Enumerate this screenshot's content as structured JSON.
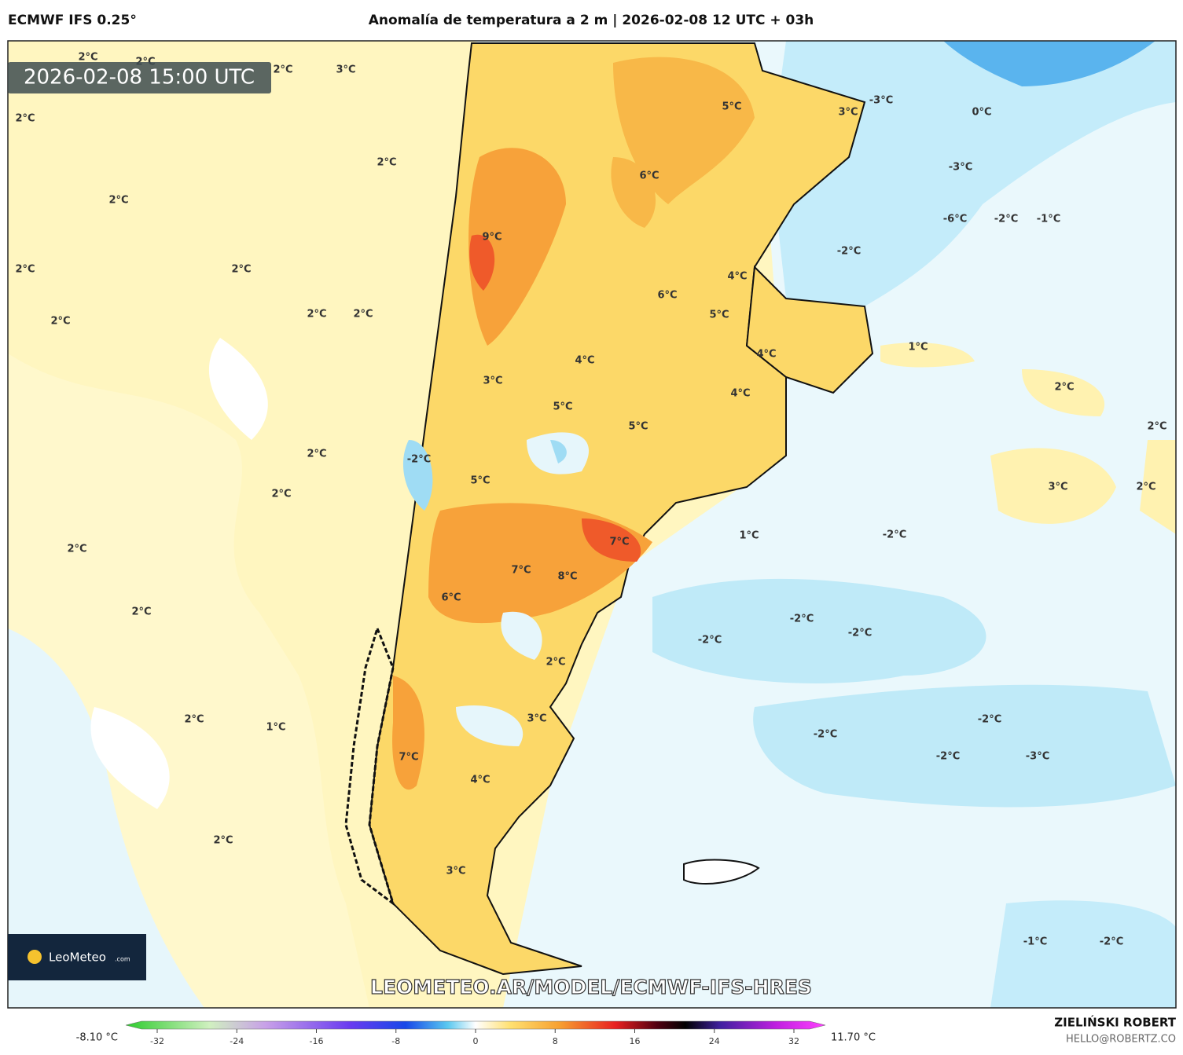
{
  "header": {
    "model": "ECMWF IFS 0.25°",
    "title": "Anomalía de temperatura a 2 m | 2026-02-08 12 UTC + 03h"
  },
  "map": {
    "timestamp": "2026-02-08 15:00 UTC",
    "labels": [
      "2°C",
      "2°C",
      "2°C",
      "3°C",
      "2°C",
      "2°C",
      "2°C",
      "2°C",
      "2°C",
      "2°C",
      "2°C",
      "2°C",
      "9°C",
      "3°C",
      "6°C",
      "5°C",
      "3°C",
      "-3°C",
      "0°C",
      "-3°C",
      "-6°C",
      "-2°C",
      "-1°C",
      "-2°C",
      "4°C",
      "6°C",
      "5°C",
      "4°C",
      "4°C",
      "1°C",
      "5°C",
      "5°C",
      "4°C",
      "2°C",
      "2°C",
      "-2°C",
      "2°C",
      "5°C",
      "2°C",
      "3°C",
      "2°C",
      "2°C",
      "7°C",
      "1°C",
      "-2°C",
      "7°C",
      "8°C",
      "6°C",
      "2°C",
      "-2°C",
      "-2°C",
      "-2°C",
      "2°C",
      "3°C",
      "2°C",
      "1°C",
      "-2°C",
      "-2°C",
      "-2°C",
      "-3°C",
      "7°C",
      "4°C",
      "2°C",
      "3°C",
      "-1°C",
      "-2°C"
    ],
    "watermark": "LEOMETEO.AR/MODEL/ECMWF-IFS-HRES",
    "logo": {
      "name": "LeoMeteo",
      "suffix": ".com"
    }
  },
  "colorbar": {
    "min_label": "-8.10 °C",
    "max_label": "11.70 °C",
    "ticks": [
      -32,
      -24,
      -16,
      -8,
      0,
      8,
      16,
      24,
      32
    ]
  },
  "footer": {
    "author": "ZIELIŃSKI ROBERT",
    "contact": "HELLO@ROBERTZ.CO"
  }
}
